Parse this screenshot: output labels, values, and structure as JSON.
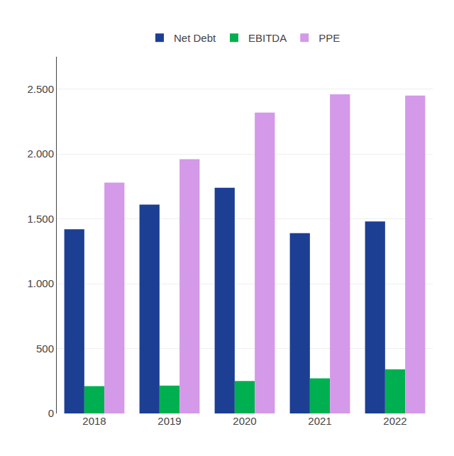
{
  "chart_data": {
    "type": "bar",
    "categories": [
      "2018",
      "2019",
      "2020",
      "2021",
      "2022"
    ],
    "series": [
      {
        "name": "Net Debt",
        "color": "#1c3f94",
        "values": [
          1420,
          1610,
          1740,
          1390,
          1480
        ]
      },
      {
        "name": "EBITDA",
        "color": "#00b050",
        "values": [
          210,
          215,
          250,
          270,
          340
        ]
      },
      {
        "name": "PPE",
        "color": "#d499e8",
        "values": [
          1780,
          1960,
          2320,
          2460,
          2450
        ]
      }
    ],
    "ylim": [
      0,
      2750
    ],
    "yticks": [
      0,
      500,
      {
        "value": 1000,
        "label": "1.000"
      },
      {
        "value": 1500,
        "label": "1.500"
      },
      {
        "value": 2000,
        "label": "2.000"
      },
      {
        "value": 2500,
        "label": "2.500"
      }
    ],
    "grid": true,
    "legend": "top"
  }
}
